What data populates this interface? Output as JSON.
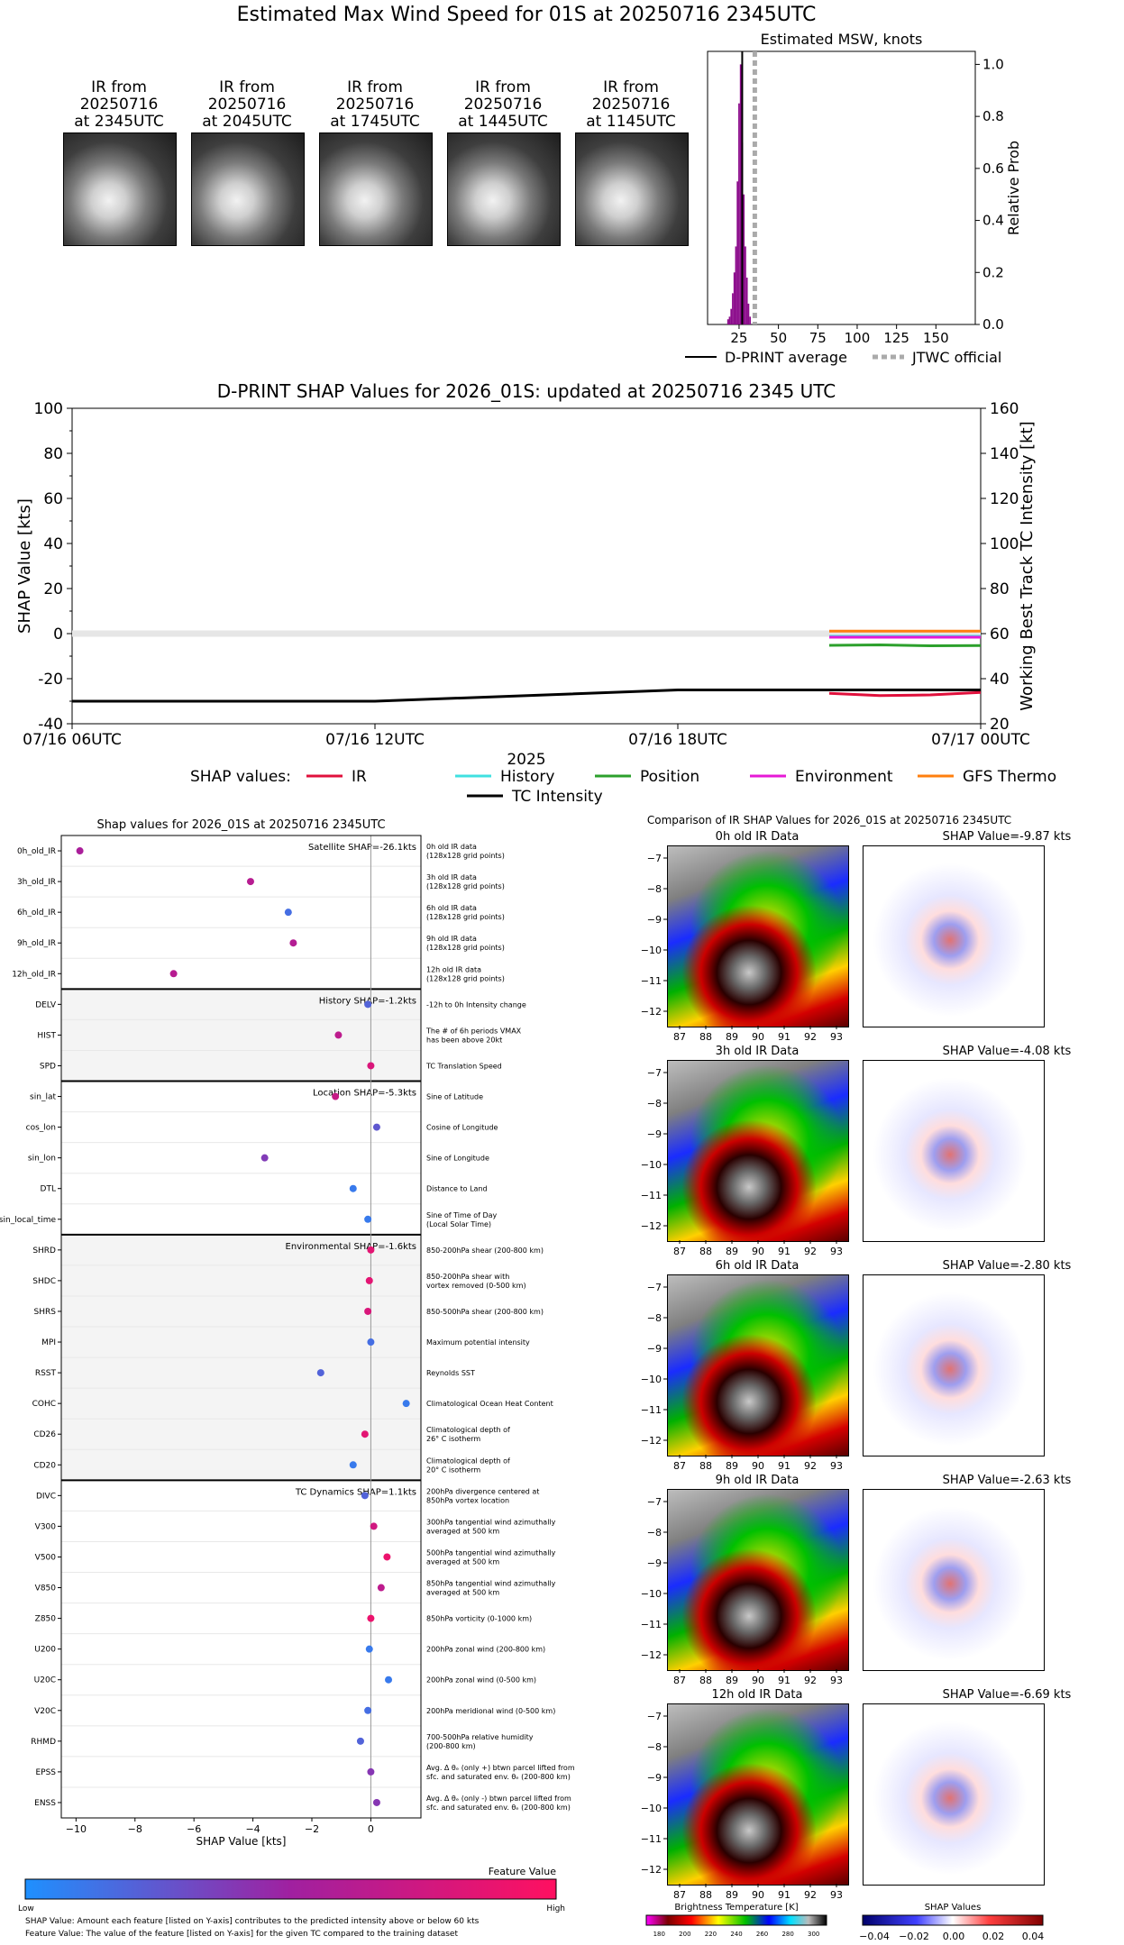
{
  "page_title": "Estimated Max Wind Speed for 01S at 20250716 2345UTC",
  "ir_thumbnails": [
    {
      "caption": [
        "IR from",
        "20250716",
        "at 2345UTC"
      ]
    },
    {
      "caption": [
        "IR from",
        "20250716",
        "at 2045UTC"
      ]
    },
    {
      "caption": [
        "IR from",
        "20250716",
        "at 1745UTC"
      ]
    },
    {
      "caption": [
        "IR from",
        "20250716",
        "at 1445UTC"
      ]
    },
    {
      "caption": [
        "IR from",
        "20250716",
        "at 1145UTC"
      ]
    }
  ],
  "chart_data": [
    {
      "type": "bar",
      "title": "Estimated MSW, knots",
      "ylabel": "Relative Prob",
      "xlim": [
        5,
        175
      ],
      "ylim": [
        0,
        1.05
      ],
      "x_ticks": [
        "25",
        "50",
        "75",
        "100",
        "125",
        "150"
      ],
      "y_ticks": [
        "0.0",
        "0.2",
        "0.4",
        "0.6",
        "0.8",
        "1.0"
      ],
      "bins": [
        18,
        19,
        20,
        21,
        22,
        23,
        24,
        25,
        26,
        27,
        28,
        29,
        30,
        31,
        32
      ],
      "values": [
        0.02,
        0.03,
        0.06,
        0.12,
        0.2,
        0.3,
        0.55,
        0.85,
        1.0,
        0.7,
        0.5,
        0.3,
        0.18,
        0.08,
        0.03
      ],
      "dprint_average": 27,
      "jtwc_official": 35,
      "legend": [
        "D-PRINT average",
        "JTWC official"
      ]
    },
    {
      "type": "line",
      "title": "D-PRINT SHAP Values for 2026_01S: updated at 20250716 2345 UTC",
      "xlabel": "2025",
      "ylabel": "SHAP Value [kts]",
      "ylabel_right": "Working Best Track TC Intensity [kt]",
      "ylim": [
        -40,
        100
      ],
      "ylim_right": [
        20,
        160
      ],
      "x_ticks": [
        "07/16 06UTC",
        "07/16 12UTC",
        "07/16 18UTC",
        "07/17 00UTC"
      ],
      "y_ticks": [
        "-40",
        "-20",
        "0",
        "20",
        "40",
        "60",
        "80",
        "100"
      ],
      "y_ticks_right": [
        "20",
        "40",
        "60",
        "80",
        "100",
        "120",
        "140",
        "160"
      ],
      "legend_label": "SHAP values:",
      "series": [
        {
          "name": "IR",
          "color": "#e0103c",
          "x": [
            "07/16 21UTC",
            "07/16 22UTC",
            "07/16 23UTC",
            "07/17 00UTC"
          ],
          "values": [
            -26.5,
            -27.5,
            -27.2,
            -26.1
          ]
        },
        {
          "name": "History",
          "color": "#40e0e0",
          "x": [
            "07/16 21UTC",
            "07/17 00UTC"
          ],
          "values": [
            -1.2,
            -1.2
          ]
        },
        {
          "name": "Position",
          "color": "#2ca02c",
          "x": [
            "07/16 21UTC",
            "07/16 22UTC",
            "07/16 23UTC",
            "07/17 00UTC"
          ],
          "values": [
            -5.2,
            -5.0,
            -5.4,
            -5.3
          ]
        },
        {
          "name": "Environment",
          "color": "#e619d6",
          "x": [
            "07/16 21UTC",
            "07/17 00UTC"
          ],
          "values": [
            -1.6,
            -1.6
          ]
        },
        {
          "name": "GFS Thermo",
          "color": "#ff7f0e",
          "x": [
            "07/16 21UTC",
            "07/17 00UTC"
          ],
          "values": [
            1.1,
            1.1
          ]
        },
        {
          "name": "TC Intensity",
          "color": "#000000",
          "axis": "right",
          "x": [
            "07/16 06UTC",
            "07/16 12UTC",
            "07/16 18UTC",
            "07/17 00UTC"
          ],
          "values": [
            30,
            30,
            35,
            35
          ]
        }
      ]
    },
    {
      "type": "scatter",
      "title": "Shap values for 2026_01S at 20250716 2345UTC",
      "xlabel": "SHAP Value [kts]",
      "xlim": [
        -10.5,
        1.7
      ],
      "x_ticks": [
        "−10",
        "−8",
        "−6",
        "−4",
        "−2",
        "0"
      ],
      "groups": [
        {
          "label": "Satellite SHAP=-26.1kts",
          "shaded": false,
          "rows": [
            {
              "feature": "0h_old_IR",
              "desc": [
                "0h old IR data",
                "(128x128 grid points)"
              ],
              "shap": -9.87,
              "value": 0.55
            },
            {
              "feature": "3h_old_IR",
              "desc": [
                "3h old IR data",
                "(128x128 grid points)"
              ],
              "shap": -4.08,
              "value": 0.62
            },
            {
              "feature": "6h_old_IR",
              "desc": [
                "6h old IR data",
                "(128x128 grid points)"
              ],
              "shap": -2.8,
              "value": 0.15
            },
            {
              "feature": "9h_old_IR",
              "desc": [
                "9h old IR data",
                "(128x128 grid points)"
              ],
              "shap": -2.63,
              "value": 0.6
            },
            {
              "feature": "12h_old_IR",
              "desc": [
                "12h old IR data",
                "(128x128 grid points)"
              ],
              "shap": -6.69,
              "value": 0.62
            }
          ]
        },
        {
          "label": "History SHAP=-1.2kts",
          "shaded": true,
          "rows": [
            {
              "feature": "DELV",
              "desc": [
                "-12h to 0h Intensity change"
              ],
              "shap": -0.1,
              "value": 0.2
            },
            {
              "feature": "HIST",
              "desc": [
                "The # of 6h periods VMAX",
                "has been above 20kt"
              ],
              "shap": -1.1,
              "value": 0.65
            },
            {
              "feature": "SPD",
              "desc": [
                "TC Translation Speed"
              ],
              "shap": 0.0,
              "value": 0.8
            }
          ]
        },
        {
          "label": "Location SHAP=-5.3kts",
          "shaded": false,
          "rows": [
            {
              "feature": "sin_lat",
              "desc": [
                "Sine of Latitude"
              ],
              "shap": -1.2,
              "value": 0.7
            },
            {
              "feature": "cos_lon",
              "desc": [
                "Cosine of Longitude"
              ],
              "shap": 0.2,
              "value": 0.25
            },
            {
              "feature": "sin_lon",
              "desc": [
                "Sine of Longitude"
              ],
              "shap": -3.6,
              "value": 0.38
            },
            {
              "feature": "DTL",
              "desc": [
                "Distance to Land"
              ],
              "shap": -0.6,
              "value": 0.1
            },
            {
              "feature": "sin_local_time",
              "desc": [
                "Sine of Time of Day",
                "(Local Solar Time)"
              ],
              "shap": -0.1,
              "value": 0.1
            }
          ]
        },
        {
          "label": "Environmental SHAP=-1.6kts",
          "shaded": true,
          "rows": [
            {
              "feature": "SHRD",
              "desc": [
                "850-200hPa shear (200-800 km)"
              ],
              "shap": 0.0,
              "value": 0.85
            },
            {
              "feature": "SHDC",
              "desc": [
                "850-200hPa shear with",
                "vortex removed (0-500 km)"
              ],
              "shap": -0.05,
              "value": 0.85
            },
            {
              "feature": "SHRS",
              "desc": [
                "850-500hPa shear (200-800 km)"
              ],
              "shap": -0.1,
              "value": 0.8
            },
            {
              "feature": "MPI",
              "desc": [
                "Maximum potential intensity"
              ],
              "shap": 0.0,
              "value": 0.15
            },
            {
              "feature": "RSST",
              "desc": [
                "Reynolds SST"
              ],
              "shap": -1.7,
              "value": 0.2
            },
            {
              "feature": "COHC",
              "desc": [
                "Climatological Ocean Heat Content"
              ],
              "shap": 1.2,
              "value": 0.1
            },
            {
              "feature": "CD26",
              "desc": [
                "Climatological depth of",
                "26° C isotherm"
              ],
              "shap": -0.2,
              "value": 0.85
            },
            {
              "feature": "CD20",
              "desc": [
                "Climatological depth of",
                "20° C isotherm"
              ],
              "shap": -0.6,
              "value": 0.1
            }
          ]
        },
        {
          "label": "TC Dynamics SHAP=1.1kts",
          "shaded": false,
          "rows": [
            {
              "feature": "DIVC",
              "desc": [
                "200hPa divergence centered at",
                "850hPa vortex location"
              ],
              "shap": -0.2,
              "value": 0.2
            },
            {
              "feature": "V300",
              "desc": [
                "300hPa tangential wind azimuthally",
                "averaged at 500 km"
              ],
              "shap": 0.1,
              "value": 0.75
            },
            {
              "feature": "V500",
              "desc": [
                "500hPa tangential wind azimuthally",
                "averaged at 500 km"
              ],
              "shap": 0.55,
              "value": 0.9
            },
            {
              "feature": "V850",
              "desc": [
                "850hPa tangential wind azimuthally",
                "averaged at 500 km"
              ],
              "shap": 0.35,
              "value": 0.65
            },
            {
              "feature": "Z850",
              "desc": [
                "850hPa vorticity (0-1000 km)"
              ],
              "shap": 0.0,
              "value": 0.9
            },
            {
              "feature": "U200",
              "desc": [
                "200hPa zonal wind (200-800 km)"
              ],
              "shap": -0.05,
              "value": 0.1
            },
            {
              "feature": "U20C",
              "desc": [
                "200hPa zonal wind (0-500 km)"
              ],
              "shap": 0.6,
              "value": 0.1
            },
            {
              "feature": "V20C",
              "desc": [
                "200hPa meridional wind (0-500 km)"
              ],
              "shap": -0.1,
              "value": 0.15
            },
            {
              "feature": "RHMD",
              "desc": [
                "700-500hPa relative humidity",
                "(200-800 km)"
              ],
              "shap": -0.35,
              "value": 0.2
            },
            {
              "feature": "EPSS",
              "desc": [
                "Avg. Δ θₑ (only +) btwn parcel lifted from",
                "sfc. and saturated env. θₑ (200-800 km)"
              ],
              "shap": 0.0,
              "value": 0.4
            },
            {
              "feature": "ENSS",
              "desc": [
                "Avg. Δ θₑ (only -) btwn parcel lifted from",
                "sfc. and saturated env. θₑ (200-800 km)"
              ],
              "shap": 0.2,
              "value": 0.4
            }
          ]
        }
      ]
    }
  ],
  "feature_colorbar": {
    "title": "Feature Value",
    "low": "Low",
    "high": "High",
    "low_color": "#1e90ff",
    "mid_color": "#a020a0",
    "high_color": "#ff1060"
  },
  "footnotes": [
    "SHAP Value: Amount each feature [listed on Y-axis] contributes to the predicted intensity above or below 60 kts",
    "Feature Value: The value of the feature [listed on Y-axis] for the given TC compared to the training dataset"
  ],
  "comparison": {
    "title": "Comparison of IR SHAP Values for 2026_01S at 20250716 2345UTC",
    "lat_ticks": [
      "−7",
      "−8",
      "−9",
      "−10",
      "−11",
      "−12"
    ],
    "lon_ticks": [
      "87",
      "88",
      "89",
      "90",
      "91",
      "92",
      "93"
    ],
    "rows": [
      {
        "ir_title": "0h old IR Data",
        "shap_title": "SHAP Value=-9.87 kts"
      },
      {
        "ir_title": "3h old IR Data",
        "shap_title": "SHAP Value=-4.08 kts"
      },
      {
        "ir_title": "6h old IR Data",
        "shap_title": "SHAP Value=-2.80 kts"
      },
      {
        "ir_title": "9h old IR Data",
        "shap_title": "SHAP Value=-2.63 kts"
      },
      {
        "ir_title": "12h old IR Data",
        "shap_title": "SHAP Value=-6.69 kts"
      }
    ],
    "bt_colorbar": {
      "title": "Brightness Temperature [K]",
      "ticks": [
        "180",
        "200",
        "220",
        "240",
        "260",
        "280",
        "300"
      ]
    },
    "shap_colorbar": {
      "title": "SHAP Values",
      "ticks": [
        "−0.04",
        "−0.02",
        "0.00",
        "0.02",
        "0.04"
      ]
    }
  }
}
